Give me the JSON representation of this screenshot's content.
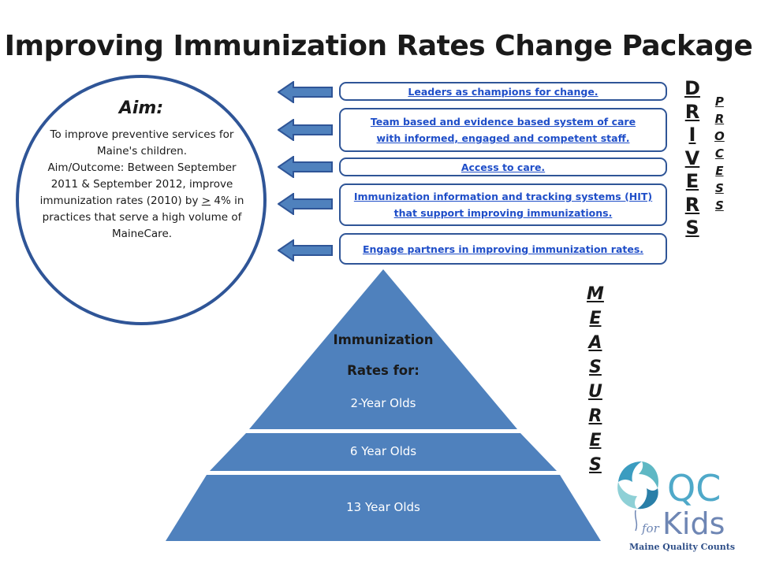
{
  "title": "Improving Immunization Rates Change Package",
  "aim": {
    "heading": "Aim:",
    "line1": "To improve preventive services for Maine's children.",
    "line2_pre": "Aim/Outcome:  Between September 2011 & September 2012, improve immunization rates (2010) by ",
    "line2_gt": ">",
    "line2_post": " 4% in practices that serve a high volume of MaineCare."
  },
  "drivers": [
    "Leaders as champions for change.",
    "Team based and evidence based system of care with informed, engaged and competent staff.",
    "Access to care.",
    "Immunization information and tracking systems (HIT) that support improving immunizations.",
    "Engage partners in improving immunization rates."
  ],
  "drivers_label": "D\nR\nI\nV\nE\nR\nS",
  "process_label": "P\nR\nO\nC\nE\nS\nS",
  "measures_label": "M\nE\nA\nS\nU\nR\nE\nS",
  "pyramid": {
    "top_line1": "Immunization",
    "top_line2": "Rates for:",
    "top_line3": "2-Year Olds",
    "mid": "6 Year Olds",
    "bottom": "13 Year Olds"
  },
  "logo": {
    "qc": "QC",
    "for": "for",
    "kids": "Kids",
    "tagline": "Maine Quality Counts"
  },
  "colors": {
    "accent": "#2f5597",
    "pyramid_fill": "#4f81bd",
    "link": "#1f4ec8"
  }
}
